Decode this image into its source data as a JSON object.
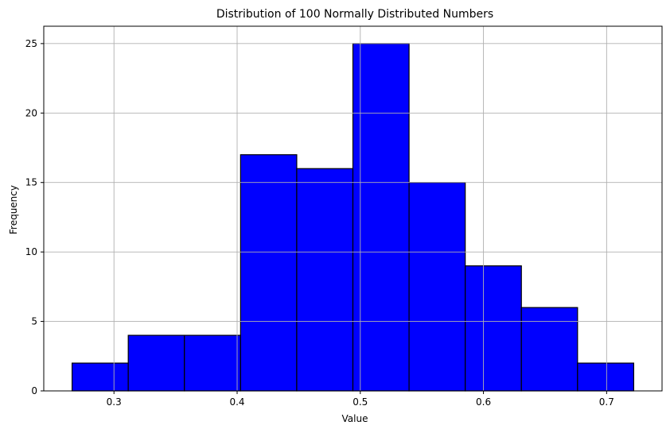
{
  "chart_data": {
    "type": "bar",
    "title": "Distribution of 100 Normally Distributed Numbers",
    "xlabel": "Value",
    "ylabel": "Frequency",
    "bin_edges": [
      0.266,
      0.3116,
      0.3572,
      0.4028,
      0.4484,
      0.494,
      0.5396,
      0.5852,
      0.6308,
      0.6764,
      0.722
    ],
    "values": [
      2,
      4,
      4,
      17,
      16,
      25,
      15,
      9,
      6,
      2
    ],
    "xlim": [
      0.243,
      0.745
    ],
    "ylim": [
      0,
      26.25
    ],
    "xticks": [
      0.3,
      0.4,
      0.5,
      0.6,
      0.7
    ],
    "xtick_labels": [
      "0.3",
      "0.4",
      "0.5",
      "0.6",
      "0.7"
    ],
    "yticks": [
      0,
      5,
      10,
      15,
      20,
      25
    ],
    "ytick_labels": [
      "0",
      "5",
      "10",
      "15",
      "20",
      "25"
    ],
    "grid": true,
    "bar_color": "#0000ff",
    "edge_color": "#000000",
    "grid_color": "#b0b0b0"
  }
}
